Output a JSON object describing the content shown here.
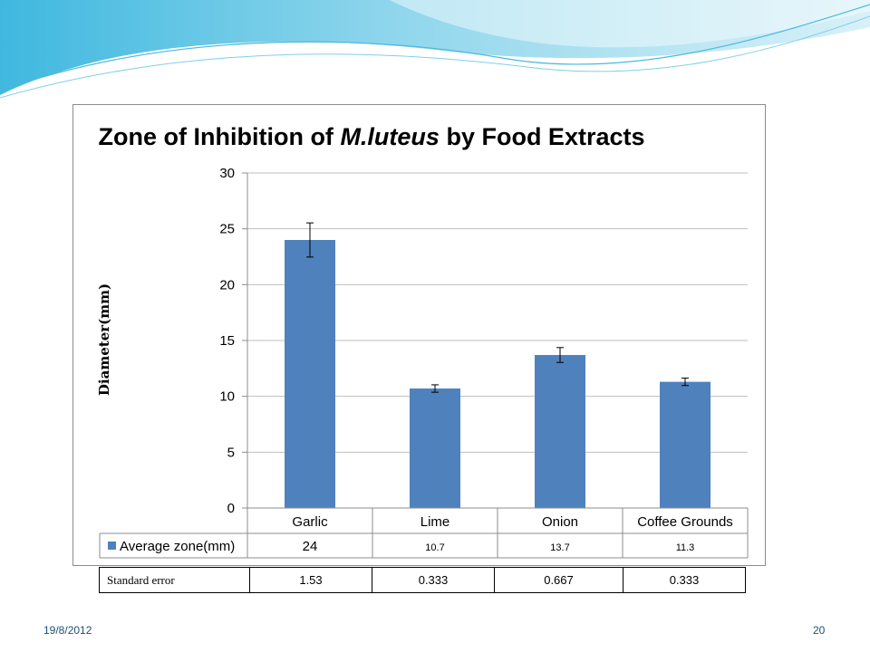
{
  "slide": {
    "date": "19/8/2012",
    "page_number": "20"
  },
  "chart_data": {
    "type": "bar",
    "title_prefix": "Zone of Inhibition of ",
    "title_italic": "M.luteus",
    "title_suffix": " by Food Extracts",
    "ylabel": "Diameter(mm)",
    "xlabel": "",
    "ylim": [
      0,
      30
    ],
    "yticks": [
      0,
      5,
      10,
      15,
      20,
      25,
      30
    ],
    "grid": true,
    "categories": [
      "Garlic",
      "Lime",
      "Onion",
      "Coffee Grounds"
    ],
    "series": [
      {
        "name": "Average zone(mm)",
        "values": [
          24,
          10.7,
          13.7,
          11.3
        ],
        "value_labels": [
          "24",
          "10.7",
          "13.7",
          "11.3"
        ],
        "errors": [
          1.53,
          0.333,
          0.667,
          0.333
        ],
        "color": "#4f81bd"
      }
    ],
    "data_table": true
  },
  "std_table": {
    "label": "Standard error",
    "values": [
      "1.53",
      "0.333",
      "0.667",
      "0.333"
    ]
  },
  "colors": {
    "bar": "#4f81bd",
    "grid": "#bfbfbf",
    "footer_text": "#1f4e79",
    "wave_light": "#bfe8f3",
    "wave_mid": "#5ec8e8"
  }
}
